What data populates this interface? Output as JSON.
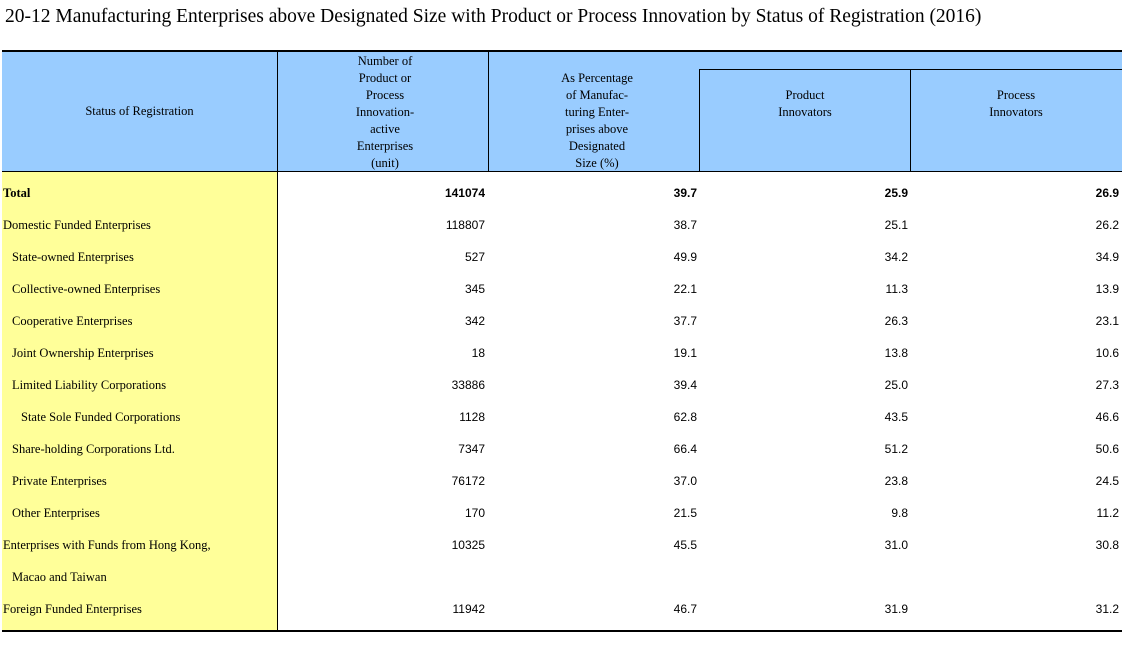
{
  "title": "20-12  Manufacturing Enterprises above Designated Size with Product or Process Innovation by Status of Registration (2016)",
  "header": {
    "status": "Status of Registration",
    "number": [
      "Number of",
      "Product or",
      "Process",
      "Innovation-",
      "active",
      "Enterprises",
      "(unit)"
    ],
    "percentage": [
      "As Percentage",
      "of Manufac-",
      "turing Enter-",
      "prises above",
      "Designated",
      "Size (%)"
    ],
    "product": [
      "Product",
      "Innovators"
    ],
    "process": [
      "Process",
      "Innovators"
    ]
  },
  "rows": [
    {
      "label": "Total",
      "number": "141074",
      "percentage": "39.7",
      "product": "25.9",
      "process": "26.9"
    },
    {
      "label": "Domestic Funded Enterprises",
      "number": "118807",
      "percentage": "38.7",
      "product": "25.1",
      "process": "26.2"
    },
    {
      "label": "State-owned Enterprises",
      "number": "527",
      "percentage": "49.9",
      "product": "34.2",
      "process": "34.9"
    },
    {
      "label": "Collective-owned Enterprises",
      "number": "345",
      "percentage": "22.1",
      "product": "11.3",
      "process": "13.9"
    },
    {
      "label": "Cooperative Enterprises",
      "number": "342",
      "percentage": "37.7",
      "product": "26.3",
      "process": "23.1"
    },
    {
      "label": "Joint Ownership Enterprises",
      "number": "18",
      "percentage": "19.1",
      "product": "13.8",
      "process": "10.6"
    },
    {
      "label": "Limited Liability Corporations",
      "number": "33886",
      "percentage": "39.4",
      "product": "25.0",
      "process": "27.3"
    },
    {
      "label": "State Sole Funded Corporations",
      "number": "1128",
      "percentage": "62.8",
      "product": "43.5",
      "process": "46.6"
    },
    {
      "label": "Share-holding Corporations Ltd.",
      "number": "7347",
      "percentage": "66.4",
      "product": "51.2",
      "process": "50.6"
    },
    {
      "label": "Private Enterprises",
      "number": "76172",
      "percentage": "37.0",
      "product": "23.8",
      "process": "24.5"
    },
    {
      "label": "Other Enterprises",
      "number": "170",
      "percentage": "21.5",
      "product": "9.8",
      "process": "11.2"
    },
    {
      "label": "Enterprises with Funds from Hong Kong,",
      "number": "10325",
      "percentage": "45.5",
      "product": "31.0",
      "process": "30.8"
    },
    {
      "label": "Macao and Taiwan",
      "number": "",
      "percentage": "",
      "product": "",
      "process": ""
    },
    {
      "label": "Foreign Funded Enterprises",
      "number": "11942",
      "percentage": "46.7",
      "product": "31.9",
      "process": "31.2"
    }
  ]
}
